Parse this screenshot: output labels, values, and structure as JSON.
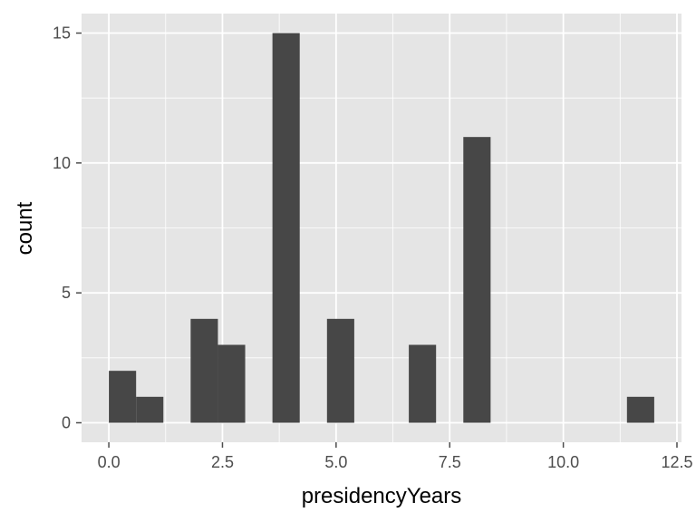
{
  "chart_data": {
    "type": "bar",
    "xlabel": "presidencyYears",
    "ylabel": "count",
    "xlim": [
      -0.6,
      12.6
    ],
    "ylim": [
      -0.75,
      15.75
    ],
    "bin_width": 0.6,
    "bins": [
      {
        "start": 0.0,
        "end": 0.6,
        "count": 2
      },
      {
        "start": 0.6,
        "end": 1.2,
        "count": 1
      },
      {
        "start": 1.8,
        "end": 2.4,
        "count": 4
      },
      {
        "start": 2.4,
        "end": 3.0,
        "count": 3
      },
      {
        "start": 3.6,
        "end": 4.2,
        "count": 15
      },
      {
        "start": 4.8,
        "end": 5.4,
        "count": 4
      },
      {
        "start": 6.6,
        "end": 7.2,
        "count": 3
      },
      {
        "start": 7.8,
        "end": 8.4,
        "count": 11
      },
      {
        "start": 11.4,
        "end": 12.0,
        "count": 1
      }
    ],
    "x_ticks": [
      0,
      2.5,
      5,
      7.5,
      10,
      12.5
    ],
    "x_tick_labels": [
      "0.0",
      "2.5",
      "5.0",
      "7.5",
      "10.0",
      "12.5"
    ],
    "y_ticks": [
      0,
      5,
      10,
      15
    ],
    "y_tick_labels": [
      "0",
      "5",
      "10",
      "15"
    ],
    "grid": true,
    "colors": {
      "panel": "#e5e5e5",
      "grid": "#ffffff",
      "bar": "#474747",
      "tick": "#4d4d4d"
    }
  }
}
